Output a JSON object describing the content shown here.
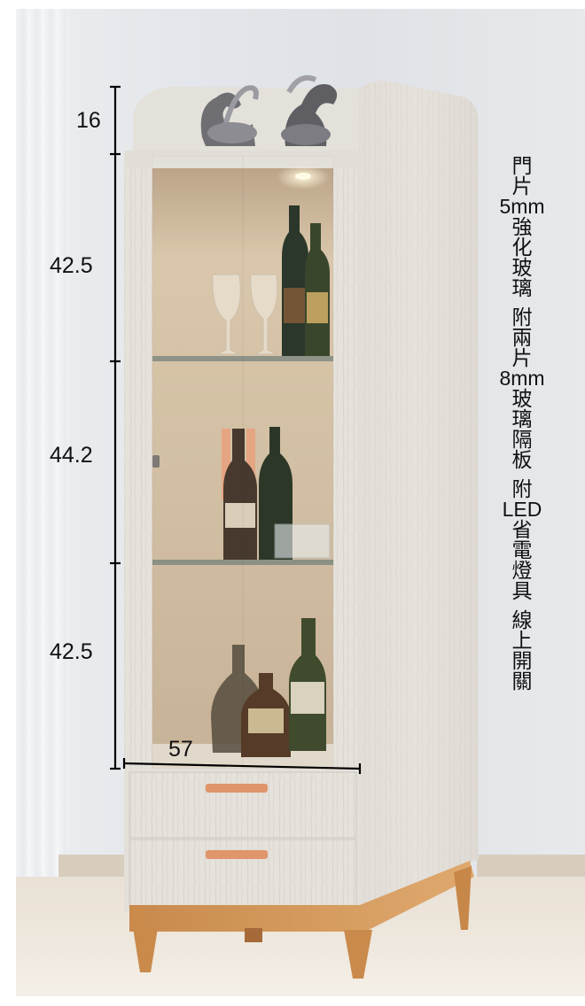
{
  "dimensions": {
    "crown_height": "16",
    "upper_shelf": "42.5",
    "middle_shelf": "44.2",
    "lower_shelf": "42.5",
    "width": "57"
  },
  "spec_text": {
    "line1": "門",
    "line2": "片",
    "line3": "5mm",
    "line4": "強",
    "line5": "化",
    "line6": "玻",
    "line7": "璃",
    "line8": "附",
    "line9": "兩",
    "line10": "片",
    "line11": "8mm",
    "line12": "玻",
    "line13": "璃",
    "line14": "隔",
    "line15": "板",
    "line16": "附",
    "line17": "LED",
    "line18": "省",
    "line19": "電",
    "line20": "燈",
    "line21": "具",
    "line22": "線",
    "line23": "上",
    "line24": "開",
    "line25": "關"
  },
  "colors": {
    "cabinet_body": "#e6e2dc",
    "cabinet_grain": "#d8d2ca",
    "interior_light": "#c9b396",
    "wood_legs": "#d69a5c",
    "handle": "#e0956a",
    "dimension_line": "#000000"
  }
}
